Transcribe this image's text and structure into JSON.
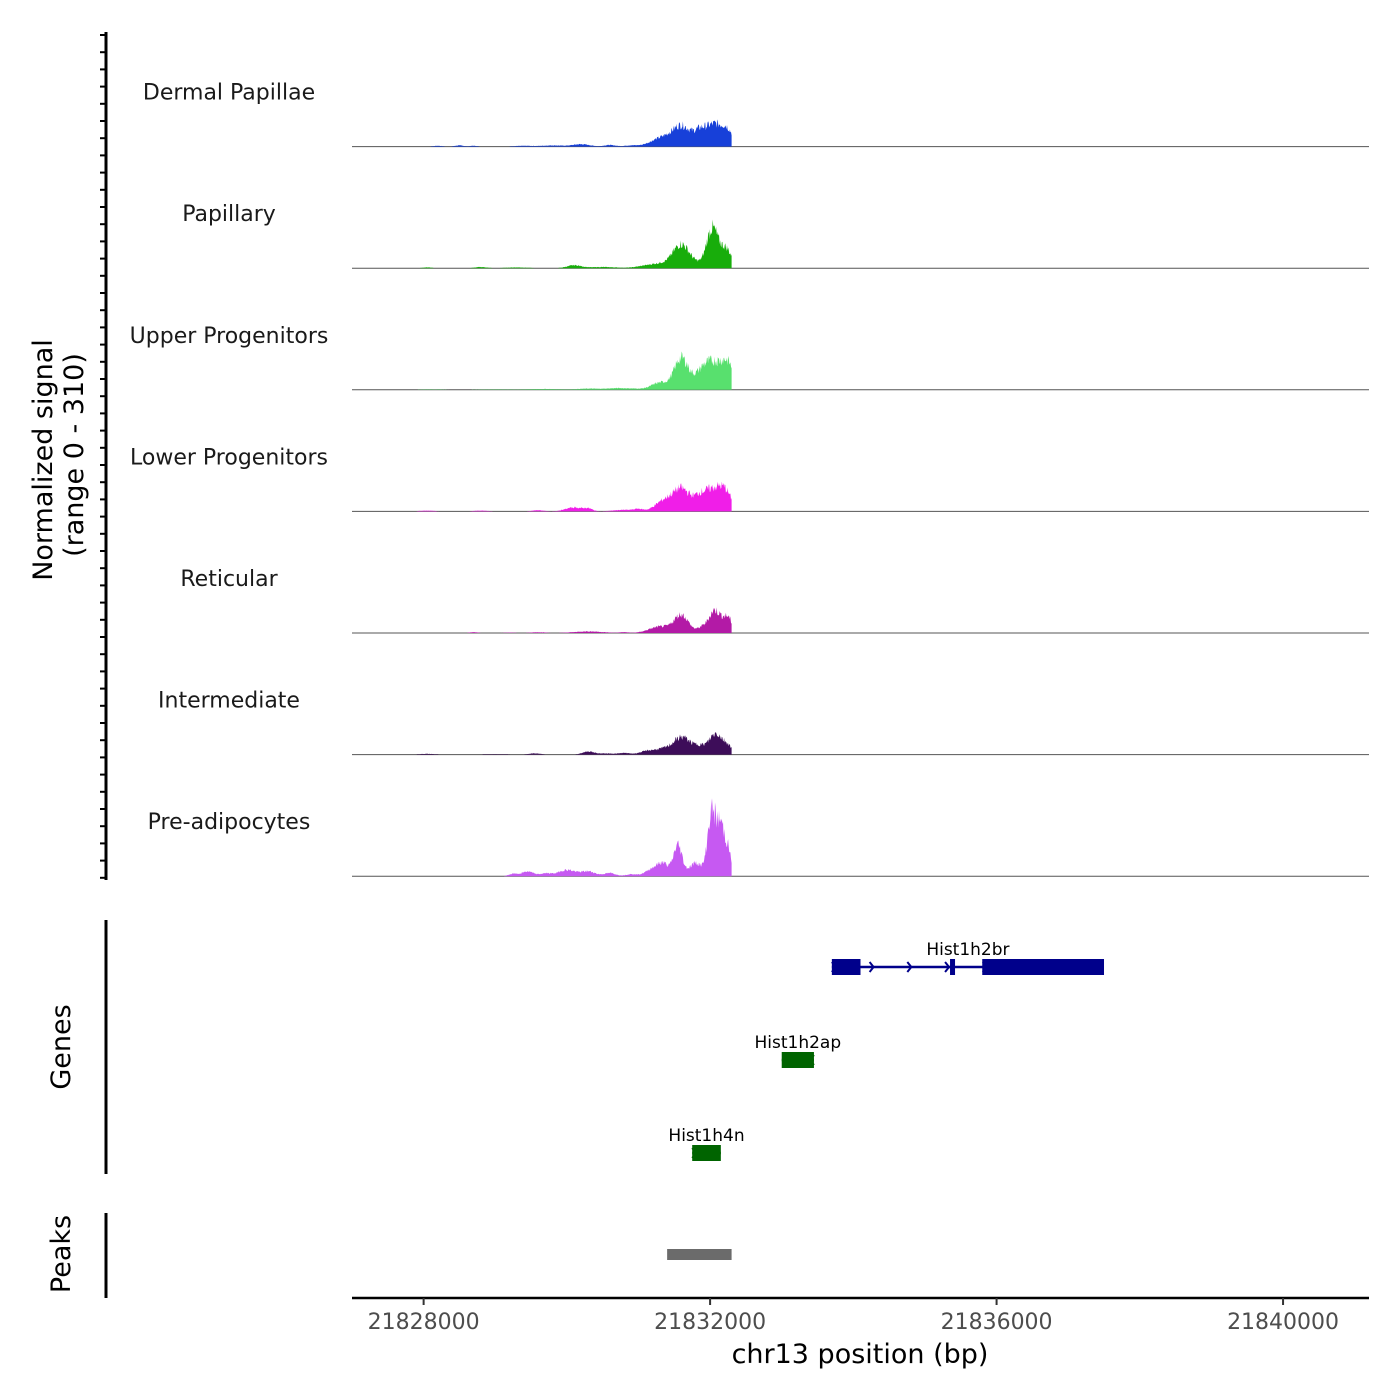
{
  "chart_data": {
    "type": "area",
    "subtype": "coverage-track-plot",
    "y_axis_title": "Normalized signal",
    "y_axis_subtitle": "(range 0 - 310)",
    "y_range": [
      0,
      310
    ],
    "x_axis_title": "chr13 position (bp)",
    "x_range": [
      21827000,
      21841200
    ],
    "x_ticks": [
      21828000,
      21832000,
      21836000,
      21840000
    ],
    "x_tick_labels": [
      "21828000",
      "21832000",
      "21836000",
      "21840000"
    ],
    "signal_extent": [
      21827900,
      21832300
    ],
    "series": [
      {
        "name": "Dermal Papillae",
        "color": "#1740d9",
        "bumps": [
          [
            21828200,
            60,
            2
          ],
          [
            21828500,
            60,
            3
          ],
          [
            21828700,
            50,
            2
          ],
          [
            21829400,
            120,
            2
          ],
          [
            21829800,
            150,
            3
          ],
          [
            21830200,
            120,
            6
          ],
          [
            21830600,
            80,
            4
          ],
          [
            21830900,
            90,
            3
          ],
          [
            21831200,
            120,
            8
          ],
          [
            21831350,
            120,
            16
          ],
          [
            21831600,
            130,
            52
          ],
          [
            21831850,
            70,
            16
          ],
          [
            21832060,
            160,
            58
          ],
          [
            21832250,
            70,
            20
          ]
        ]
      },
      {
        "name": "Papillary",
        "color": "#18ad0b",
        "bumps": [
          [
            21828050,
            60,
            2
          ],
          [
            21828800,
            80,
            3
          ],
          [
            21829300,
            150,
            2
          ],
          [
            21830100,
            100,
            7
          ],
          [
            21830500,
            200,
            3
          ],
          [
            21831050,
            120,
            2
          ],
          [
            21831350,
            200,
            13
          ],
          [
            21831600,
            110,
            54
          ],
          [
            21831900,
            150,
            12
          ],
          [
            21832020,
            70,
            72
          ],
          [
            21832150,
            110,
            44
          ],
          [
            21832250,
            60,
            18
          ]
        ]
      },
      {
        "name": "Upper Progenitors",
        "color": "#58e06e",
        "bumps": [
          [
            21828100,
            200,
            1
          ],
          [
            21829000,
            300,
            1
          ],
          [
            21829700,
            200,
            2
          ],
          [
            21830300,
            150,
            3
          ],
          [
            21830700,
            150,
            4
          ],
          [
            21830950,
            120,
            2
          ],
          [
            21831300,
            120,
            18
          ],
          [
            21831600,
            100,
            80
          ],
          [
            21831900,
            110,
            40
          ],
          [
            21832120,
            150,
            65
          ],
          [
            21832260,
            70,
            30
          ]
        ]
      },
      {
        "name": "Lower Progenitors",
        "color": "#f01ee8",
        "bumps": [
          [
            21828050,
            100,
            2
          ],
          [
            21828800,
            100,
            2
          ],
          [
            21829600,
            80,
            3
          ],
          [
            21830100,
            120,
            10
          ],
          [
            21830300,
            60,
            6
          ],
          [
            21830800,
            150,
            4
          ],
          [
            21831000,
            60,
            5
          ],
          [
            21831350,
            120,
            25
          ],
          [
            21831600,
            120,
            56
          ],
          [
            21831850,
            80,
            18
          ],
          [
            21832050,
            150,
            58
          ],
          [
            21832220,
            80,
            28
          ]
        ]
      },
      {
        "name": "Reticular",
        "color": "#b31aa6",
        "bumps": [
          [
            21828700,
            60,
            2
          ],
          [
            21829200,
            100,
            1
          ],
          [
            21829600,
            100,
            2
          ],
          [
            21830300,
            200,
            4
          ],
          [
            21830800,
            60,
            2
          ],
          [
            21831300,
            150,
            16
          ],
          [
            21831600,
            100,
            45
          ],
          [
            21831900,
            70,
            15
          ],
          [
            21832050,
            70,
            45
          ],
          [
            21832180,
            90,
            30
          ],
          [
            21832260,
            50,
            20
          ]
        ]
      },
      {
        "name": "Intermediate",
        "color": "#3d0d59",
        "bumps": [
          [
            21828050,
            100,
            2
          ],
          [
            21829000,
            200,
            1
          ],
          [
            21829550,
            80,
            3
          ],
          [
            21830300,
            80,
            8
          ],
          [
            21830550,
            100,
            3
          ],
          [
            21830800,
            80,
            4
          ],
          [
            21831100,
            100,
            6
          ],
          [
            21831350,
            150,
            14
          ],
          [
            21831620,
            120,
            42
          ],
          [
            21831850,
            70,
            16
          ],
          [
            21832080,
            100,
            54
          ],
          [
            21832260,
            60,
            16
          ]
        ]
      },
      {
        "name": "Pre-adipocytes",
        "color": "#c659f2",
        "bumps": [
          [
            21829250,
            60,
            6
          ],
          [
            21829450,
            80,
            12
          ],
          [
            21829700,
            80,
            7
          ],
          [
            21830000,
            120,
            16
          ],
          [
            21830300,
            100,
            12
          ],
          [
            21830600,
            80,
            8
          ],
          [
            21830900,
            80,
            5
          ],
          [
            21831200,
            100,
            18
          ],
          [
            21831350,
            80,
            28
          ],
          [
            21831550,
            60,
            78
          ],
          [
            21831800,
            90,
            34
          ],
          [
            21832020,
            55,
            155
          ],
          [
            21832150,
            60,
            130
          ],
          [
            21832260,
            40,
            50
          ]
        ]
      }
    ],
    "genes": [
      {
        "name": "Hist1h2br",
        "color": "#00008b",
        "start": 21833700,
        "end": 21837500,
        "strand": "+",
        "exons": [
          [
            21833700,
            21834100
          ],
          [
            21835350,
            21835420
          ],
          [
            21835800,
            21837500
          ]
        ]
      },
      {
        "name": "Hist1h2ap",
        "color": "#006400",
        "start": 21833000,
        "end": 21833450,
        "strand": "-",
        "exons": [
          [
            21833000,
            21833450
          ]
        ]
      },
      {
        "name": "Hist1h4n",
        "color": "#006400",
        "start": 21831750,
        "end": 21832150,
        "strand": "+",
        "exons": [
          [
            21831750,
            21832150
          ]
        ]
      }
    ],
    "genes_label": "Genes",
    "peaks_label": "Peaks",
    "peaks": [
      {
        "start": 21831400,
        "end": 21832300,
        "color": "#6b6b6b"
      }
    ]
  }
}
